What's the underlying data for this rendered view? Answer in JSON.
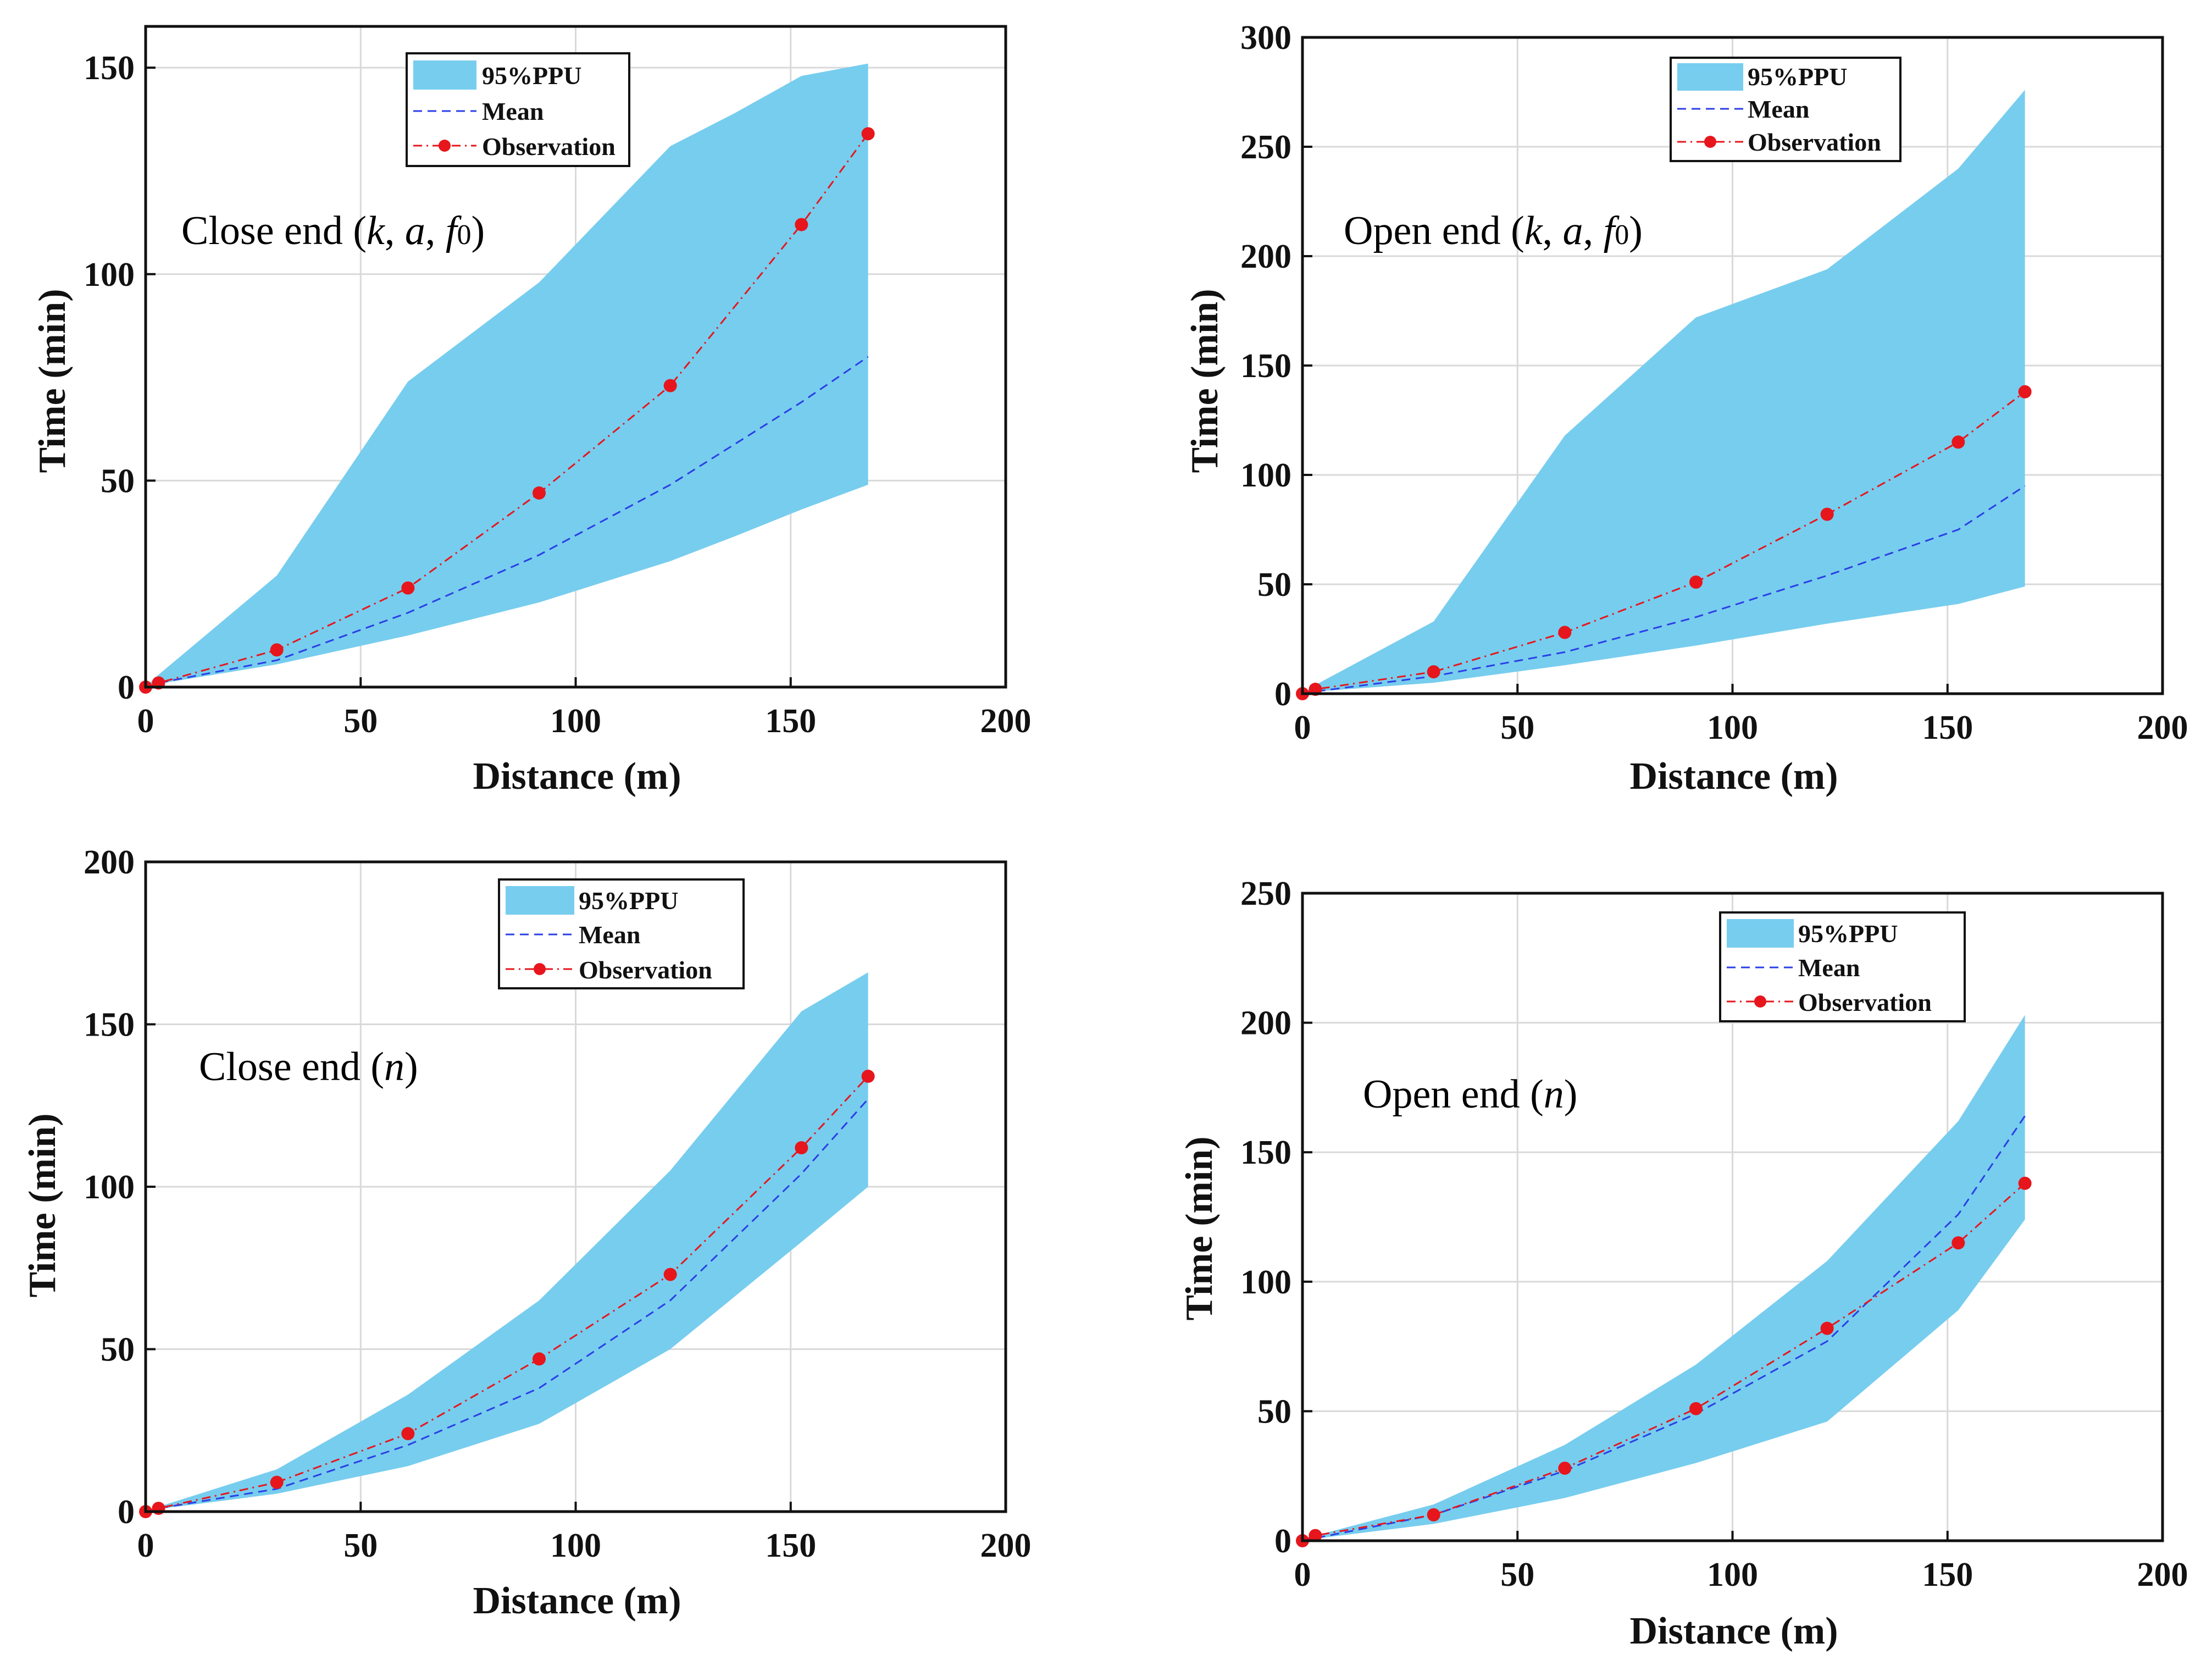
{
  "chart_data": [
    {
      "type": "area",
      "panel": "top-left",
      "annotation": {
        "prefix": "Close end (",
        "k": "k",
        "sep1": ", ",
        "a": "a",
        "sep2": ", ",
        "f": "f",
        "sub": "0",
        "suffix": ")"
      },
      "xlabel": "Distance (m)",
      "ylabel": "Time (min)",
      "xlim": [
        0,
        200
      ],
      "ylim": [
        0,
        160
      ],
      "xticks": [
        0,
        50,
        100,
        150,
        200
      ],
      "yticks": [
        0,
        50,
        100,
        150
      ],
      "grid": true,
      "legend": {
        "position": "top-center",
        "entries": [
          "95%PPU",
          "Mean",
          "Observation"
        ]
      },
      "band": {
        "name": "95%PPU",
        "color": "#77cdee",
        "x": [
          0,
          3,
          30.5,
          61,
          91.5,
          122,
          137,
          152.5,
          168
        ],
        "lower": [
          0,
          0.8,
          5.5,
          12.5,
          20.5,
          30.5,
          36.5,
          43,
          49
        ],
        "upper": [
          0,
          3,
          27,
          74,
          98,
          131,
          139,
          148,
          151
        ]
      },
      "series": [
        {
          "name": "Mean",
          "style": "dashed",
          "color": "#2b3fe6",
          "x": [
            0,
            3,
            30.5,
            61,
            91.5,
            122,
            152.5,
            168
          ],
          "y": [
            0,
            1,
            6.5,
            18,
            32,
            49,
            69,
            80
          ]
        },
        {
          "name": "Observation",
          "style": "dash-dot-markers",
          "color": "#e6161c",
          "x": [
            0,
            3,
            30.5,
            61,
            91.5,
            122,
            152.5,
            168
          ],
          "y": [
            0,
            1,
            9,
            24,
            47,
            73,
            112,
            134
          ]
        }
      ]
    },
    {
      "type": "area",
      "panel": "top-right",
      "annotation": {
        "prefix": "Open end (",
        "k": "k",
        "sep1": ", ",
        "a": "a",
        "sep2": ", ",
        "f": "f",
        "sub": "0",
        "suffix": ")"
      },
      "xlabel": "Distance (m)",
      "ylabel": "Time (min)",
      "xlim": [
        0,
        200
      ],
      "ylim": [
        0,
        300
      ],
      "xticks": [
        0,
        50,
        100,
        150,
        200
      ],
      "yticks": [
        0,
        50,
        100,
        150,
        200,
        250,
        300
      ],
      "grid": true,
      "legend": {
        "position": "top-center",
        "entries": [
          "95%PPU",
          "Mean",
          "Observation"
        ]
      },
      "band": {
        "name": "95%PPU",
        "color": "#77cdee",
        "x": [
          0,
          3,
          30.5,
          61,
          91.5,
          122,
          152.5,
          168
        ],
        "lower": [
          0,
          1,
          5,
          13,
          22,
          32,
          41,
          49
        ],
        "upper": [
          0,
          4,
          33,
          118,
          172,
          194,
          240,
          276
        ]
      },
      "series": [
        {
          "name": "Mean",
          "style": "dashed",
          "color": "#2b3fe6",
          "x": [
            0,
            3,
            30.5,
            61,
            91.5,
            122,
            152.5,
            168
          ],
          "y": [
            0,
            1,
            8,
            19,
            35,
            54,
            75,
            95
          ]
        },
        {
          "name": "Observation",
          "style": "dash-dot-markers",
          "color": "#e6161c",
          "x": [
            0,
            3,
            30.5,
            61,
            91.5,
            122,
            152.5,
            168
          ],
          "y": [
            0,
            2,
            10,
            28,
            51,
            82,
            115,
            138
          ]
        }
      ]
    },
    {
      "type": "area",
      "panel": "bottom-left",
      "annotation": {
        "prefix": "Close end (",
        "n": "n",
        "suffix": ")"
      },
      "xlabel": "Distance (m)",
      "ylabel": "Time (min)",
      "xlim": [
        0,
        200
      ],
      "ylim": [
        0,
        200
      ],
      "xticks": [
        0,
        50,
        100,
        150,
        200
      ],
      "yticks": [
        0,
        50,
        100,
        150,
        200
      ],
      "grid": true,
      "legend": {
        "position": "top-center",
        "entries": [
          "95%PPU",
          "Mean",
          "Observation"
        ]
      },
      "band": {
        "name": "95%PPU",
        "color": "#77cdee",
        "x": [
          0,
          3,
          30.5,
          61,
          91.5,
          122,
          152.5,
          168
        ],
        "lower": [
          0,
          0.8,
          5.5,
          14,
          27,
          50,
          83,
          100
        ],
        "upper": [
          0,
          1.5,
          13,
          36,
          65,
          105,
          154,
          166
        ]
      },
      "series": [
        {
          "name": "Mean",
          "style": "dashed",
          "color": "#2b3fe6",
          "x": [
            0,
            3,
            30.5,
            61,
            91.5,
            122,
            152.5,
            168
          ],
          "y": [
            0,
            1,
            7,
            20.5,
            38,
            65,
            104,
            127
          ]
        },
        {
          "name": "Observation",
          "style": "dash-dot-markers",
          "color": "#e6161c",
          "x": [
            0,
            3,
            30.5,
            61,
            91.5,
            122,
            152.5,
            168
          ],
          "y": [
            0,
            1,
            9,
            24,
            47,
            73,
            112,
            134
          ]
        }
      ]
    },
    {
      "type": "area",
      "panel": "bottom-right",
      "annotation": {
        "prefix": "Open end (",
        "n": "n",
        "suffix": ")"
      },
      "xlabel": "Distance (m)",
      "ylabel": "Time (min)",
      "xlim": [
        0,
        200
      ],
      "ylim": [
        0,
        250
      ],
      "xticks": [
        0,
        50,
        100,
        150,
        200
      ],
      "yticks": [
        0,
        50,
        100,
        150,
        200,
        250
      ],
      "grid": true,
      "legend": {
        "position": "top-center",
        "entries": [
          "95%PPU",
          "Mean",
          "Observation"
        ]
      },
      "band": {
        "name": "95%PPU",
        "color": "#77cdee",
        "x": [
          0,
          3,
          30.5,
          61,
          91.5,
          122,
          152.5,
          168
        ],
        "lower": [
          0,
          0.8,
          6.5,
          16.5,
          30,
          46,
          89,
          124
        ],
        "upper": [
          0,
          2,
          14,
          37,
          68,
          108,
          162,
          203
        ]
      },
      "series": [
        {
          "name": "Mean",
          "style": "dashed",
          "color": "#2b3fe6",
          "x": [
            0,
            3,
            30.5,
            61,
            91.5,
            122,
            152.5,
            168
          ],
          "y": [
            0,
            1,
            10,
            27,
            49,
            77,
            126,
            164
          ]
        },
        {
          "name": "Observation",
          "style": "dash-dot-markers",
          "color": "#e6161c",
          "x": [
            0,
            3,
            30.5,
            61,
            91.5,
            122,
            152.5,
            168
          ],
          "y": [
            0,
            2,
            10,
            28,
            51,
            82,
            115,
            138
          ]
        }
      ]
    }
  ]
}
